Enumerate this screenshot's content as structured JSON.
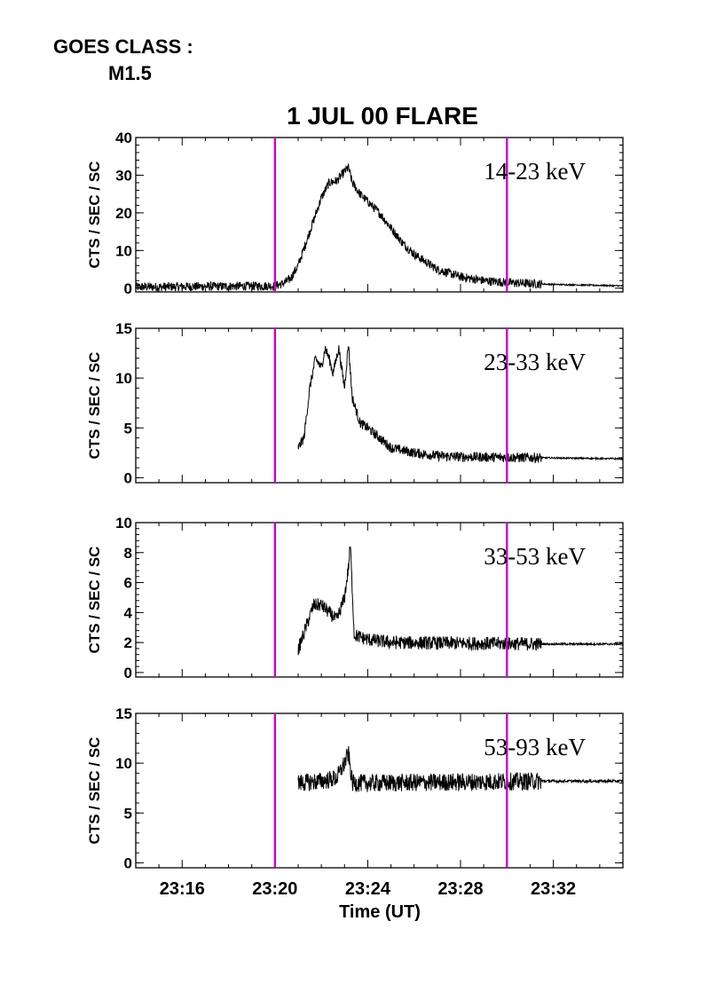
{
  "header": {
    "goes_class_label": "GOES CLASS :",
    "goes_class_value": "M1.5"
  },
  "chart_data": {
    "type": "line",
    "title": "1 JUL 00 FLARE",
    "xlabel": "Time (UT)",
    "x_unit": "minutes",
    "xlim": [
      "23:14:00",
      "23:35:00"
    ],
    "x_ticks": [
      "23:16",
      "23:20",
      "23:24",
      "23:28",
      "23:32"
    ],
    "x_tick_values": [
      "23:16:00",
      "23:20:00",
      "23:24:00",
      "23:28:00",
      "23:32:00"
    ],
    "grid": false,
    "colors": {
      "trace": "#000000",
      "marker": "#cc00cc"
    },
    "vertical_markers": [
      "23:20:00",
      "23:30:00"
    ],
    "panels": [
      {
        "band_label": "14-23 keV",
        "ylabel": "CTS / SEC / SC",
        "ylim": [
          -1,
          40
        ],
        "y_ticks": [
          0,
          10,
          20,
          30,
          40
        ],
        "series": [
          {
            "points": [
              [
                "23:14:00",
                0.3
              ],
              [
                "23:18:00",
                0.5
              ],
              [
                "23:20:00",
                0.6
              ],
              [
                "23:20:20",
                1.2
              ],
              [
                "23:20:40",
                2.5
              ],
              [
                "23:21:00",
                6
              ],
              [
                "23:21:20",
                12
              ],
              [
                "23:21:40",
                18
              ],
              [
                "23:22:00",
                24
              ],
              [
                "23:22:20",
                28
              ],
              [
                "23:22:40",
                28.5
              ],
              [
                "23:23:00",
                31
              ],
              [
                "23:23:10",
                32
              ],
              [
                "23:23:20",
                28
              ],
              [
                "23:23:40",
                25
              ],
              [
                "23:24:00",
                23
              ],
              [
                "23:24:30",
                20
              ],
              [
                "23:25:00",
                16
              ],
              [
                "23:25:30",
                12
              ],
              [
                "23:26:00",
                9
              ],
              [
                "23:26:30",
                7
              ],
              [
                "23:27:00",
                5
              ],
              [
                "23:27:30",
                4
              ],
              [
                "23:28:00",
                3
              ],
              [
                "23:29:00",
                2
              ],
              [
                "23:30:00",
                1.5
              ],
              [
                "23:31:00",
                1.2
              ],
              [
                "23:32:00",
                1
              ],
              [
                "23:35:00",
                0.6
              ]
            ],
            "noise": 1.2
          }
        ]
      },
      {
        "band_label": "23-33 keV",
        "ylabel": "CTS / SEC / SC",
        "ylim": [
          -0.5,
          15
        ],
        "y_ticks": [
          0,
          5,
          10,
          15
        ],
        "series": [
          {
            "points": [
              [
                "23:21:00",
                3
              ],
              [
                "23:21:15",
                4
              ],
              [
                "23:21:30",
                9
              ],
              [
                "23:21:45",
                12
              ],
              [
                "23:22:00",
                11
              ],
              [
                "23:22:10",
                13
              ],
              [
                "23:22:20",
                12
              ],
              [
                "23:22:30",
                10.5
              ],
              [
                "23:22:45",
                13
              ],
              [
                "23:23:00",
                9
              ],
              [
                "23:23:10",
                13.5
              ],
              [
                "23:23:20",
                8
              ],
              [
                "23:23:40",
                5.5
              ],
              [
                "23:24:00",
                5
              ],
              [
                "23:24:30",
                4
              ],
              [
                "23:25:00",
                3
              ],
              [
                "23:26:00",
                2.5
              ],
              [
                "23:27:00",
                2.2
              ],
              [
                "23:28:00",
                2.1
              ],
              [
                "23:31:30",
                2
              ],
              [
                "23:35:00",
                1.9
              ]
            ],
            "noise": 0.5
          }
        ]
      },
      {
        "band_label": "33-53 keV",
        "ylabel": "CTS / SEC / SC",
        "ylim": [
          -0.3,
          10
        ],
        "y_ticks": [
          0,
          2,
          4,
          6,
          8,
          10
        ],
        "series": [
          {
            "points": [
              [
                "23:21:00",
                1.5
              ],
              [
                "23:21:20",
                3
              ],
              [
                "23:21:40",
                4.5
              ],
              [
                "23:22:00",
                4.5
              ],
              [
                "23:22:20",
                4
              ],
              [
                "23:22:40",
                3.5
              ],
              [
                "23:23:00",
                5
              ],
              [
                "23:23:10",
                7
              ],
              [
                "23:23:15",
                8.5
              ],
              [
                "23:23:25",
                2.5
              ],
              [
                "23:24:00",
                2.2
              ],
              [
                "23:25:00",
                2
              ],
              [
                "23:31:30",
                1.9
              ],
              [
                "23:35:00",
                1.9
              ]
            ],
            "noise": 0.45
          }
        ]
      },
      {
        "band_label": "53-93 keV",
        "ylabel": "CTS / SEC / SC",
        "ylim": [
          -0.5,
          15
        ],
        "y_ticks": [
          0,
          5,
          10,
          15
        ],
        "series": [
          {
            "points": [
              [
                "23:21:00",
                8
              ],
              [
                "23:22:00",
                8.2
              ],
              [
                "23:22:40",
                8.5
              ],
              [
                "23:23:00",
                10
              ],
              [
                "23:23:10",
                11
              ],
              [
                "23:23:20",
                8
              ],
              [
                "23:24:00",
                8
              ],
              [
                "23:31:30",
                8.2
              ],
              [
                "23:35:00",
                8.2
              ]
            ],
            "noise": 0.9
          }
        ]
      }
    ]
  }
}
